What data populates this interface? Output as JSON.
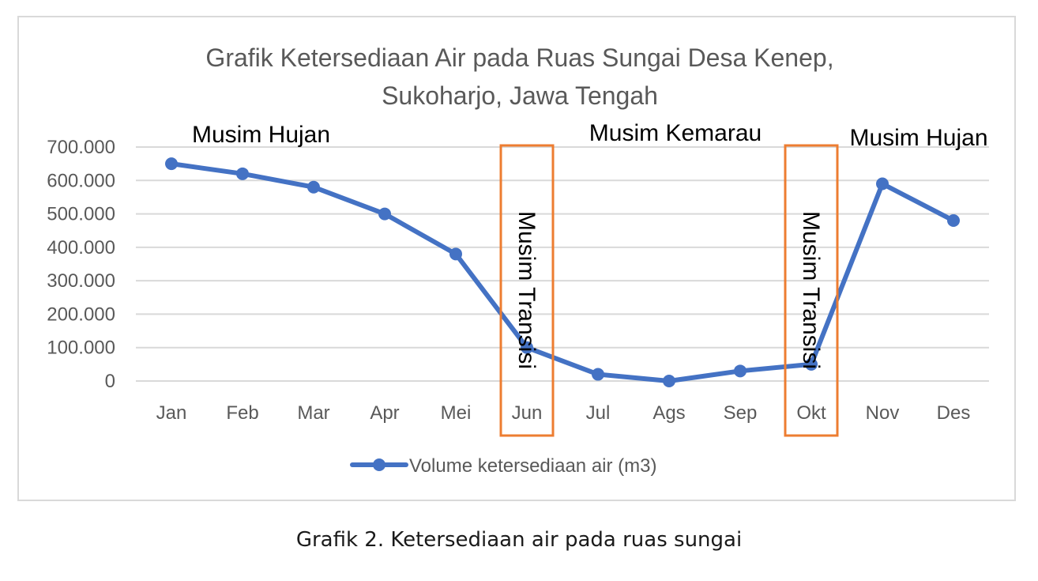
{
  "chart_data": {
    "type": "line",
    "title_lines": [
      "Grafik Ketersediaan Air pada Ruas Sungai Desa Kenep,",
      "Sukoharjo, Jawa Tengah"
    ],
    "categories": [
      "Jan",
      "Feb",
      "Mar",
      "Apr",
      "Mei",
      "Jun",
      "Jul",
      "Ags",
      "Sep",
      "Okt",
      "Nov",
      "Des"
    ],
    "series": [
      {
        "name": "Volume ketersediaan air (m3)",
        "values": [
          650000,
          620000,
          580000,
          500000,
          380000,
          100000,
          20000,
          0,
          30000,
          50000,
          590000,
          480000
        ]
      }
    ],
    "y_ticks": [
      0,
      100000,
      200000,
      300000,
      400000,
      500000,
      600000,
      700000
    ],
    "y_tick_labels": [
      "0",
      "100.000",
      "200.000",
      "300.000",
      "400.000",
      "500.000",
      "600.000",
      "700.000"
    ],
    "ylim": [
      0,
      700000
    ],
    "grid": true,
    "legend_position": "bottom",
    "color": "#4472c4",
    "annotations": {
      "seasons": [
        {
          "label": "Musim Hujan",
          "category": "Jan"
        },
        {
          "label": "Musim Kemarau",
          "category": "Ags"
        },
        {
          "label": "Musim Hujan",
          "category": "Nov"
        }
      ],
      "transitions": [
        {
          "label": "Musim Transisi",
          "category": "Jun"
        },
        {
          "label": "Musim Transisi",
          "category": "Okt"
        }
      ],
      "transition_color": "#ed7d31"
    }
  },
  "caption": "Grafik 2. Ketersediaan air pada ruas sungai"
}
